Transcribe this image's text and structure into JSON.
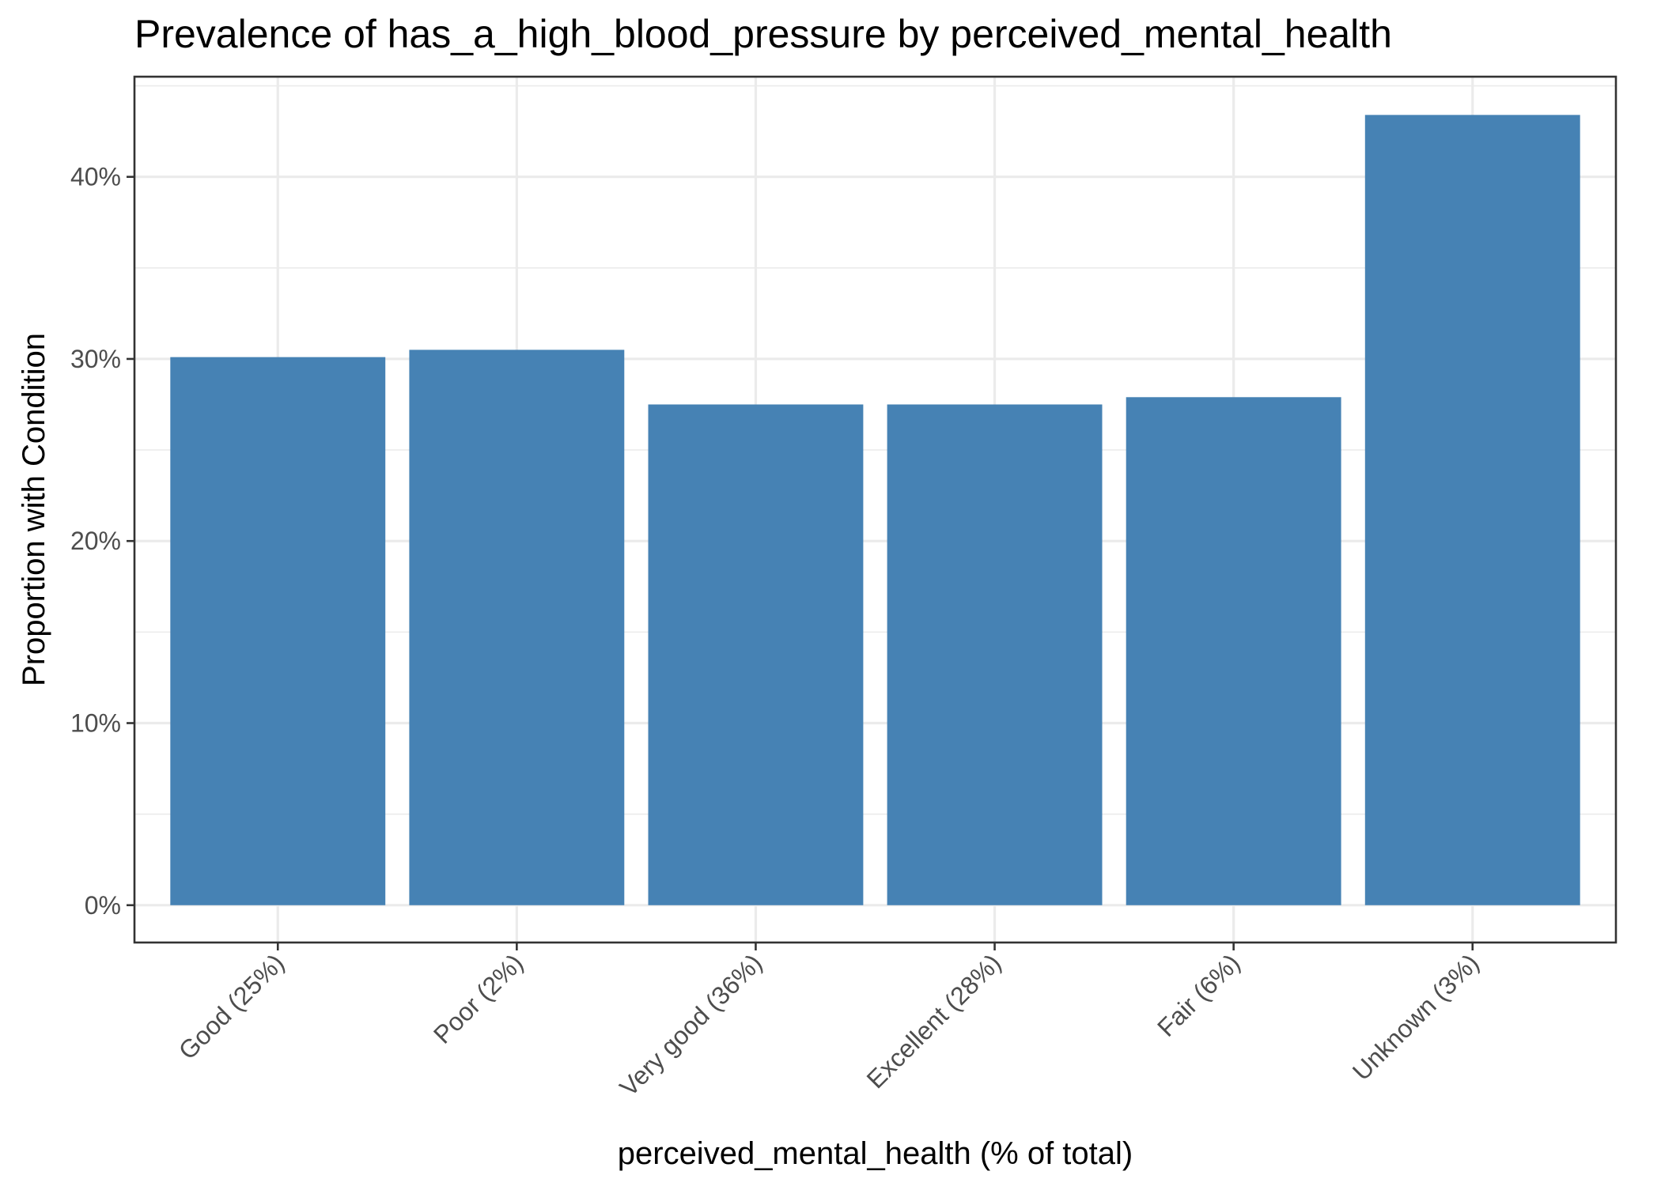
{
  "chart_data": {
    "type": "bar",
    "title": "Prevalence of has_a_high_blood_pressure by perceived_mental_health",
    "xlabel": "perceived_mental_health (% of total)",
    "ylabel": "Proportion with Condition",
    "categories": [
      "Good (25%)",
      "Poor (2%)",
      "Very good (36%)",
      "Excellent (28%)",
      "Fair (6%)",
      "Unknown (3%)"
    ],
    "values": [
      0.301,
      0.305,
      0.275,
      0.275,
      0.279,
      0.434
    ],
    "ylim": [
      -0.0205,
      0.455
    ],
    "yticks": [
      0,
      0.1,
      0.2,
      0.3,
      0.4
    ],
    "ytick_labels": [
      "0%",
      "10%",
      "20%",
      "30%",
      "40%"
    ],
    "bar_color": "#4682B4",
    "grid": true,
    "legend": "none"
  }
}
